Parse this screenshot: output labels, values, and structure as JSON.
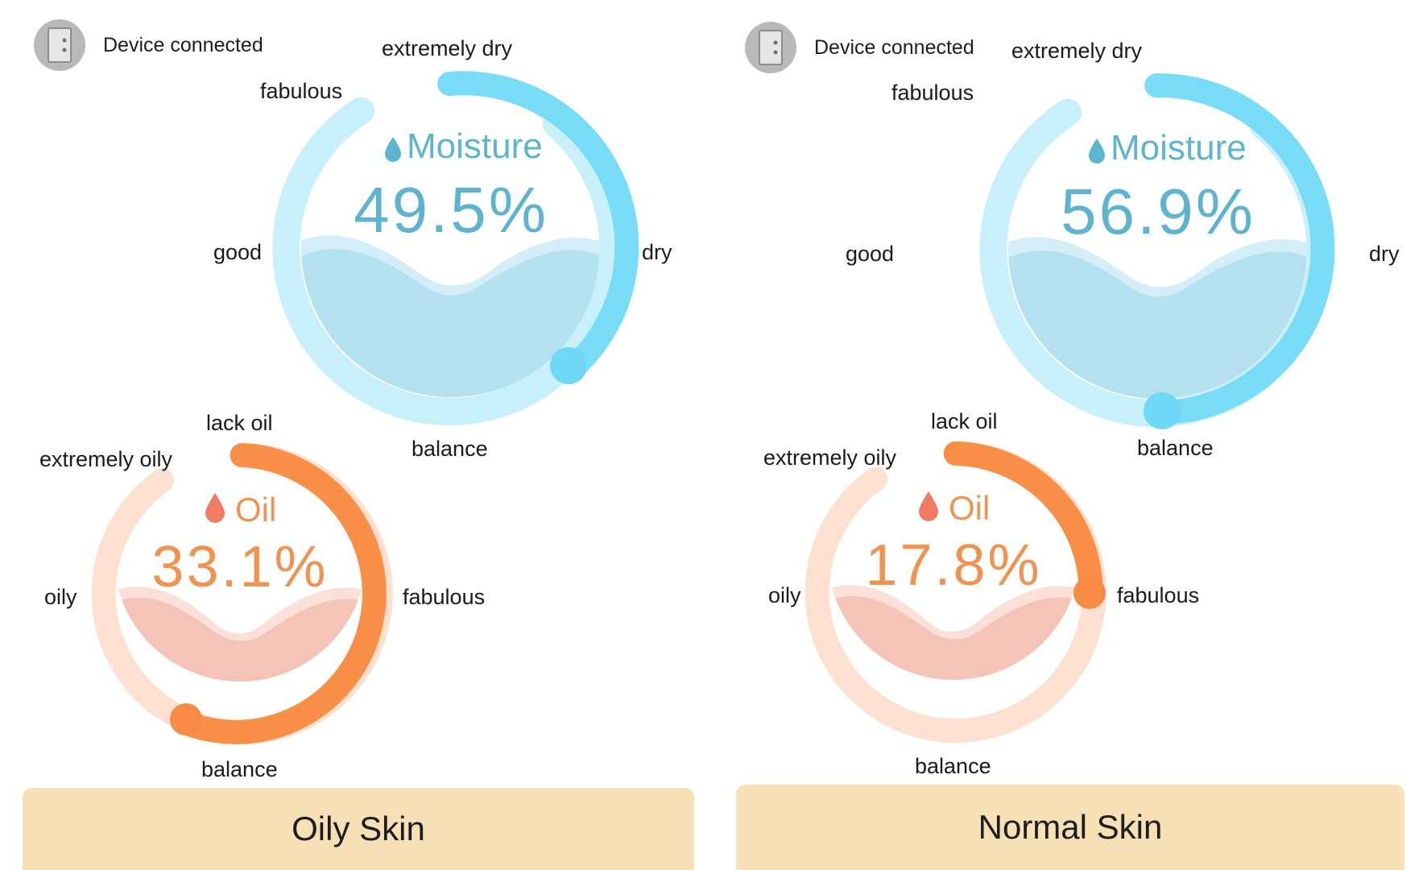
{
  "panels": [
    {
      "status": "Device connected",
      "moisture": {
        "title": "Moisture",
        "value": "49.5%",
        "labels": [
          "extremely dry",
          "fabulous",
          "good",
          "dry",
          "balance"
        ]
      },
      "oil": {
        "title": "Oil",
        "value": "33.1%",
        "labels": [
          "lack oil",
          "extremely oily",
          "oily",
          "fabulous",
          "balance"
        ]
      },
      "result": "Oily Skin"
    },
    {
      "status": "Device connected",
      "moisture": {
        "title": "Moisture",
        "value": "56.9%",
        "labels": [
          "extremely dry",
          "fabulous",
          "good",
          "dry",
          "balance"
        ]
      },
      "oil": {
        "title": "Oil",
        "value": "17.8%",
        "labels": [
          "lack oil",
          "extremely oily",
          "oily",
          "fabulous",
          "balance"
        ]
      },
      "result": "Normal Skin"
    }
  ],
  "colors": {
    "moisture_accent": "#78dcf7",
    "moisture_track": "#c8f0fb",
    "moisture_fill": "#b3e1f0",
    "moisture_text": "#5eb3cf",
    "oil_accent": "#f98e47",
    "oil_track": "#fde0cf",
    "oil_fill": "#f5c4b8",
    "oil_text": "#f09250",
    "result_bg": "#f7e0b6"
  },
  "icons": {
    "device": "phone-device-icon",
    "drop": "water-drop-icon"
  }
}
